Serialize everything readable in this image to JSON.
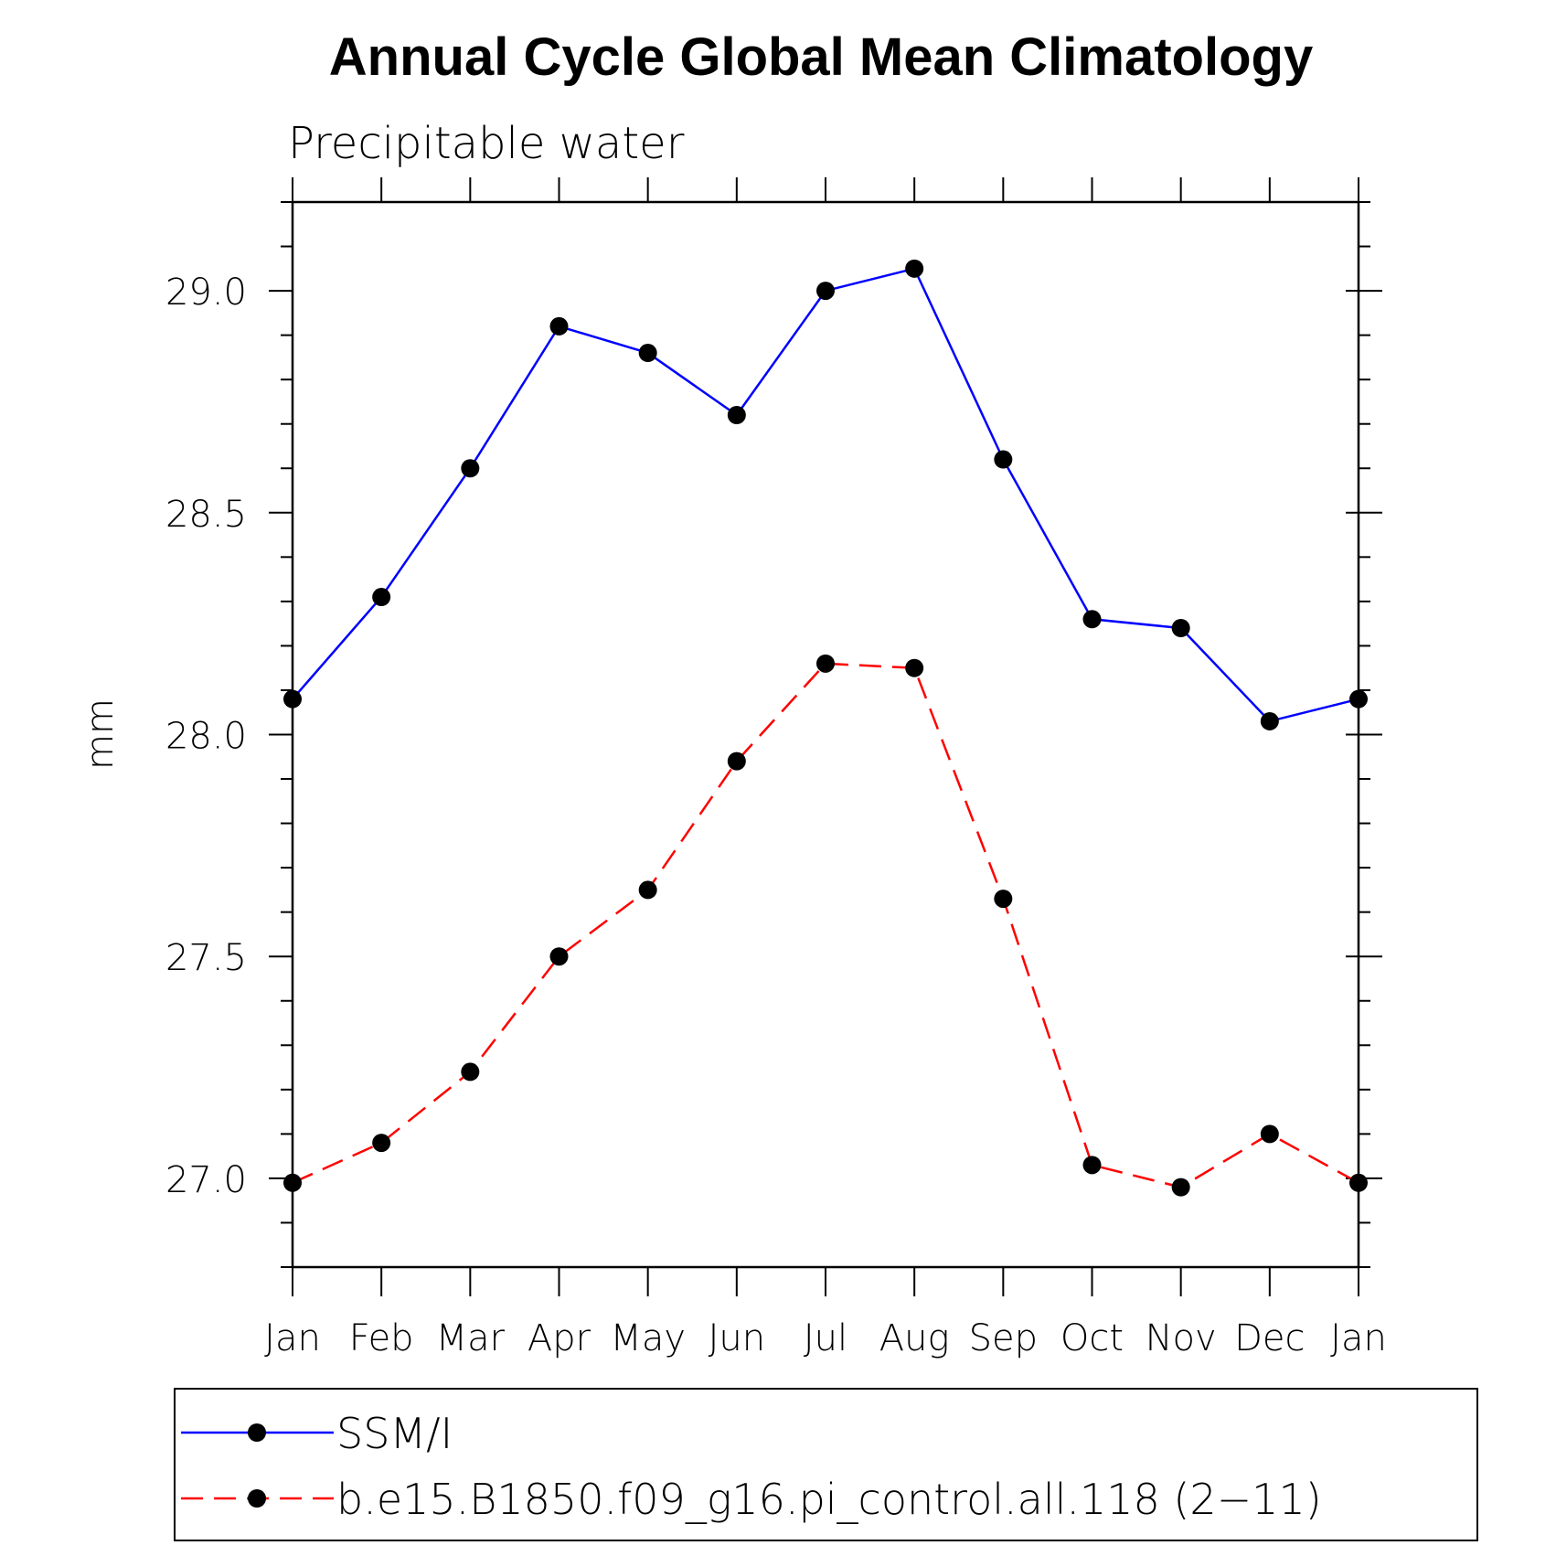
{
  "chart_data": {
    "type": "line",
    "title": "Annual Cycle Global Mean Climatology",
    "subtitle": "Precipitable water",
    "xlabel": "",
    "ylabel": "mm",
    "categories": [
      "Jan",
      "Feb",
      "Mar",
      "Apr",
      "May",
      "Jun",
      "Jul",
      "Aug",
      "Sep",
      "Oct",
      "Nov",
      "Dec",
      "Jan"
    ],
    "ylim": [
      26.8,
      29.2
    ],
    "yticks": [
      27.0,
      27.5,
      28.0,
      28.5,
      29.0
    ],
    "ytick_labels": [
      "27.0",
      "27.5",
      "28.0",
      "28.5",
      "29.0"
    ],
    "yminor_step": 0.1,
    "grid": false,
    "legend_position": "bottom",
    "series": [
      {
        "name": "SSM/I",
        "color": "#0000ff",
        "dash": "solid",
        "values": [
          28.08,
          28.31,
          28.6,
          28.92,
          28.86,
          28.72,
          29.0,
          29.05,
          28.62,
          28.26,
          28.24,
          28.03,
          28.08
        ]
      },
      {
        "name": "b.e15.B1850.f09_g16.pi_control.all.118 (2−11)",
        "color": "#ff0000",
        "dash": "dashed",
        "values": [
          26.99,
          27.08,
          27.24,
          27.5,
          27.65,
          27.94,
          28.16,
          28.15,
          27.63,
          27.03,
          26.98,
          27.1,
          26.99
        ]
      }
    ]
  }
}
